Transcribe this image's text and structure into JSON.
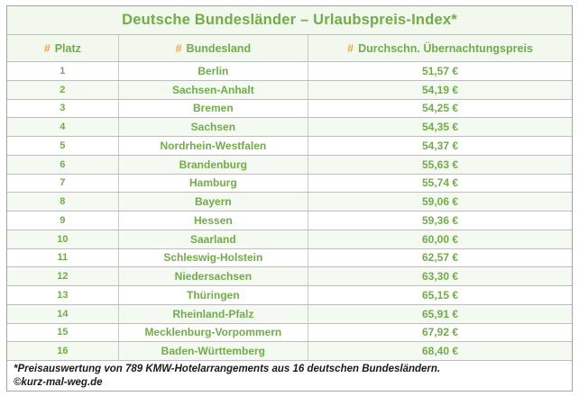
{
  "title": "Deutsche Bundesländer – Urlaubspreis-Index*",
  "columns": [
    {
      "hash": "#",
      "label": "Platz"
    },
    {
      "hash": "#",
      "label": "Bundesland"
    },
    {
      "hash": "#",
      "label": "Durchschn. Übernachtungspreis"
    }
  ],
  "rows": [
    {
      "rank": "1",
      "state": "Berlin",
      "price": "51,57 €"
    },
    {
      "rank": "2",
      "state": "Sachsen-Anhalt",
      "price": "54,19 €"
    },
    {
      "rank": "3",
      "state": "Bremen",
      "price": "54,25 €"
    },
    {
      "rank": "4",
      "state": "Sachsen",
      "price": "54,35 €"
    },
    {
      "rank": "5",
      "state": "Nordrhein-Westfalen",
      "price": "54,37 €"
    },
    {
      "rank": "6",
      "state": "Brandenburg",
      "price": "55,63 €"
    },
    {
      "rank": "7",
      "state": "Hamburg",
      "price": "55,74 €"
    },
    {
      "rank": "8",
      "state": "Bayern",
      "price": "59,06 €"
    },
    {
      "rank": "9",
      "state": "Hessen",
      "price": "59,36 €"
    },
    {
      "rank": "10",
      "state": "Saarland",
      "price": "60,00 €"
    },
    {
      "rank": "11",
      "state": "Schleswig-Holstein",
      "price": "62,57 €"
    },
    {
      "rank": "12",
      "state": "Niedersachsen",
      "price": "63,30 €"
    },
    {
      "rank": "13",
      "state": "Thüringen",
      "price": "65,15 €"
    },
    {
      "rank": "14",
      "state": "Rheinland-Pfalz",
      "price": "65,91 €"
    },
    {
      "rank": "15",
      "state": "Mecklenburg-Vorpommern",
      "price": "67,92 €"
    },
    {
      "rank": "16",
      "state": "Baden-Württemberg",
      "price": "68,40 €"
    }
  ],
  "footnote": {
    "line1": "*Preisauswertung von 789 KMW-Hotelarrangements aus 16 deutschen Bundesländern.",
    "line2": "©kurz-mal-weg.de"
  },
  "colors": {
    "green": "#70AD47",
    "gold": "#F0A73C",
    "band": "#F4F9F1",
    "panel": "#F2F8EE"
  },
  "chart_data": {
    "type": "table",
    "title": "Deutsche Bundesländer – Urlaubspreis-Index*",
    "columns": [
      "Platz",
      "Bundesland",
      "Durchschn. Übernachtungspreis"
    ],
    "rows": [
      [
        1,
        "Berlin",
        "51,57 €"
      ],
      [
        2,
        "Sachsen-Anhalt",
        "54,19 €"
      ],
      [
        3,
        "Bremen",
        "54,25 €"
      ],
      [
        4,
        "Sachsen",
        "54,35 €"
      ],
      [
        5,
        "Nordrhein-Westfalen",
        "54,37 €"
      ],
      [
        6,
        "Brandenburg",
        "55,63 €"
      ],
      [
        7,
        "Hamburg",
        "55,74 €"
      ],
      [
        8,
        "Bayern",
        "59,06 €"
      ],
      [
        9,
        "Hessen",
        "59,36 €"
      ],
      [
        10,
        "Saarland",
        "60,00 €"
      ],
      [
        11,
        "Schleswig-Holstein",
        "62,57 €"
      ],
      [
        12,
        "Niedersachsen",
        "63,30 €"
      ],
      [
        13,
        "Thüringen",
        "65,15 €"
      ],
      [
        14,
        "Rheinland-Pfalz",
        "65,91 €"
      ],
      [
        15,
        "Mecklenburg-Vorpommern",
        "67,92 €"
      ],
      [
        16,
        "Baden-Württemberg",
        "68,40 €"
      ]
    ],
    "values_eur": [
      51.57,
      54.19,
      54.25,
      54.35,
      54.37,
      55.63,
      55.74,
      59.06,
      59.36,
      60.0,
      62.57,
      63.3,
      65.15,
      65.91,
      67.92,
      68.4
    ],
    "source_note": "*Preisauswertung von 789 KMW-Hotelarrangements aus 16 deutschen Bundesländern. ©kurz-mal-weg.de"
  }
}
